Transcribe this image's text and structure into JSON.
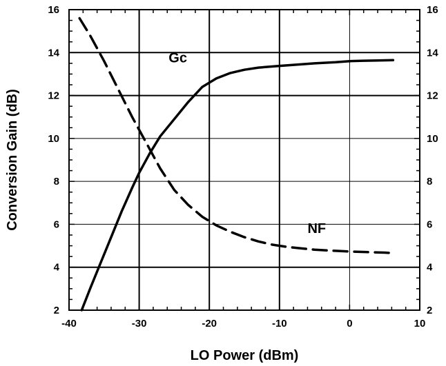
{
  "chart_data": {
    "type": "line",
    "xlabel": "LO Power (dBm)",
    "ylabel": "Conversion Gain (dB)",
    "xlim": [
      -40,
      10
    ],
    "ylim": [
      2,
      16
    ],
    "y2lim": [
      2,
      16
    ],
    "x_ticks": [
      "-40",
      "-30",
      "-20",
      "-10",
      "0",
      "10"
    ],
    "y_ticks": [
      "2",
      "4",
      "6",
      "8",
      "10",
      "12",
      "14",
      "16"
    ],
    "y2_ticks": [
      "2",
      "4",
      "6",
      "8",
      "10",
      "12",
      "14",
      "16"
    ],
    "grid": true,
    "series": [
      {
        "name": "Gc",
        "style": "solid",
        "color": "#000000",
        "x": [
          -38.2,
          -37,
          -35.5,
          -34,
          -32.5,
          -31,
          -30,
          -28.5,
          -27,
          -25,
          -23,
          -21,
          -19,
          -17,
          -15,
          -13,
          -10,
          -7,
          -5,
          -2,
          0,
          2,
          4,
          6.2
        ],
        "y": [
          2.0,
          3.0,
          4.2,
          5.4,
          6.6,
          7.7,
          8.4,
          9.3,
          10.1,
          10.9,
          11.7,
          12.4,
          12.8,
          13.05,
          13.2,
          13.3,
          13.38,
          13.45,
          13.5,
          13.55,
          13.6,
          13.62,
          13.63,
          13.65
        ]
      },
      {
        "name": "NF",
        "style": "dashed",
        "color": "#000000",
        "x": [
          -38.5,
          -37,
          -35,
          -33,
          -31,
          -29,
          -27,
          -25,
          -23,
          -21,
          -19,
          -17,
          -15,
          -13,
          -11,
          -9,
          -7,
          -5,
          -3,
          -1,
          1,
          3,
          5,
          6.2
        ],
        "y": [
          15.6,
          14.8,
          13.6,
          12.3,
          11.0,
          9.8,
          8.6,
          7.6,
          6.9,
          6.35,
          5.95,
          5.65,
          5.4,
          5.2,
          5.05,
          4.95,
          4.88,
          4.82,
          4.78,
          4.75,
          4.72,
          4.7,
          4.68,
          4.66
        ]
      }
    ],
    "annotations": {
      "gc_label": "Gc",
      "nf_label": "NF"
    }
  }
}
